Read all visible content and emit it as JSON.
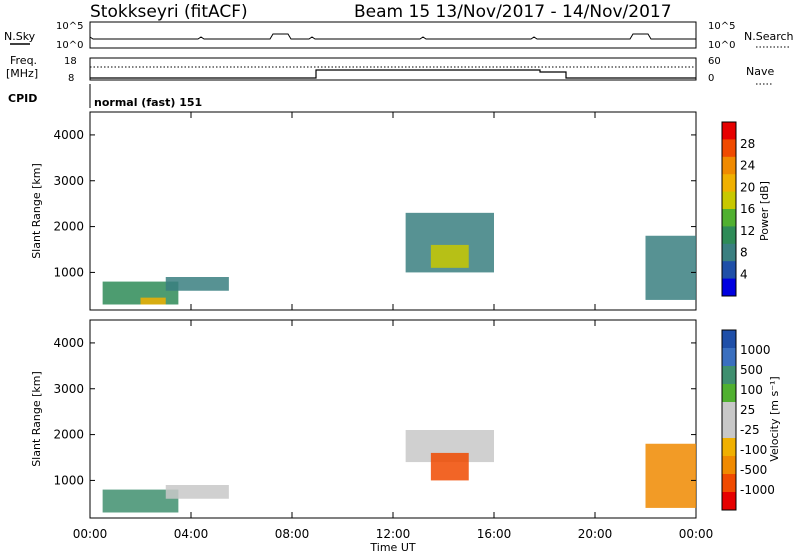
{
  "header": {
    "station": "Stokkseyri (fitACF)",
    "beam_date": "Beam 15  13/Nov/2017 - 14/Nov/2017"
  },
  "aux_panels": {
    "nsky_label": "N.Sky",
    "nsearch_label": "N.Search",
    "nsky_ticks": [
      "10^5",
      "10^0"
    ],
    "nsearch_ticks": [
      "10^5",
      "10^0"
    ],
    "freq_label": "Freq.",
    "freq_unit": "[MHz]",
    "freq_ticks": [
      "18",
      "8"
    ],
    "nave_label": "Nave",
    "nave_ticks": [
      "60",
      "0"
    ],
    "cpid_label": "CPID",
    "cpid_value": "normal (fast) 151"
  },
  "colorbars": {
    "power": {
      "label": "Power [dB]",
      "ticks": [
        "28",
        "24",
        "20",
        "16",
        "12",
        "8",
        "4"
      ],
      "colors": [
        "#e60000",
        "#f04a00",
        "#f08a00",
        "#f0b000",
        "#c8c800",
        "#50b030",
        "#2e8b57",
        "#3a7f80",
        "#1f4fa8",
        "#0000e0"
      ]
    },
    "velocity": {
      "label": "Velocity [m s⁻¹]",
      "ticks": [
        "1000",
        "500",
        "100",
        "25",
        "-25",
        "-100",
        "-500",
        "-1000"
      ],
      "colors": [
        "#1f4fa8",
        "#3a6fbf",
        "#3f8f6f",
        "#50b030",
        "#c8c8c8",
        "#c8c8c8",
        "#f0b000",
        "#f08a00",
        "#f04a00",
        "#e60000"
      ]
    }
  },
  "chart_data": [
    {
      "type": "heatmap",
      "title": "",
      "xlabel": "",
      "ylabel": "Slant Range [km]",
      "xlim": [
        "00:00",
        "00:00"
      ],
      "ylim": [
        180,
        4500
      ],
      "y_ticks": [
        "1000",
        "2000",
        "3000",
        "4000"
      ],
      "x_ticks": [
        "00:00",
        "04:00",
        "08:00",
        "12:00",
        "16:00",
        "20:00",
        "00:00"
      ],
      "quantity": "Power [dB]",
      "echo_regions": [
        {
          "time_start": "00:30",
          "time_end": "03:30",
          "range_km": [
            300,
            800
          ],
          "power_db": 12
        },
        {
          "time_start": "02:00",
          "time_end": "03:00",
          "range_km": [
            300,
            450
          ],
          "power_db": 22
        },
        {
          "time_start": "03:00",
          "time_end": "05:30",
          "range_km": [
            600,
            900
          ],
          "power_db": 10
        },
        {
          "time_start": "12:30",
          "time_end": "16:00",
          "range_km": [
            1000,
            2300
          ],
          "power_db": 8
        },
        {
          "time_start": "13:30",
          "time_end": "15:00",
          "range_km": [
            1100,
            1600
          ],
          "power_db": 18
        },
        {
          "time_start": "22:00",
          "time_end": "00:00",
          "range_km": [
            400,
            1800
          ],
          "power_db": 10
        }
      ]
    },
    {
      "type": "heatmap",
      "title": "",
      "xlabel": "Time UT",
      "ylabel": "Slant Range [km]",
      "xlim": [
        "00:00",
        "00:00"
      ],
      "ylim": [
        180,
        4500
      ],
      "y_ticks": [
        "1000",
        "2000",
        "3000",
        "4000"
      ],
      "x_ticks": [
        "00:00",
        "04:00",
        "08:00",
        "12:00",
        "16:00",
        "20:00",
        "00:00"
      ],
      "quantity": "Velocity [m s-1]",
      "echo_regions": [
        {
          "time_start": "00:30",
          "time_end": "03:30",
          "range_km": [
            300,
            800
          ],
          "velocity_ms": 100
        },
        {
          "time_start": "03:00",
          "time_end": "05:30",
          "range_km": [
            600,
            900
          ],
          "velocity_ms": 0
        },
        {
          "time_start": "12:30",
          "time_end": "16:00",
          "range_km": [
            1400,
            2100
          ],
          "velocity_ms": 0
        },
        {
          "time_start": "13:30",
          "time_end": "15:00",
          "range_km": [
            1000,
            1600
          ],
          "velocity_ms": -500
        },
        {
          "time_start": "22:00",
          "time_end": "00:00",
          "range_km": [
            400,
            1800
          ],
          "velocity_ms": -100
        }
      ]
    }
  ]
}
